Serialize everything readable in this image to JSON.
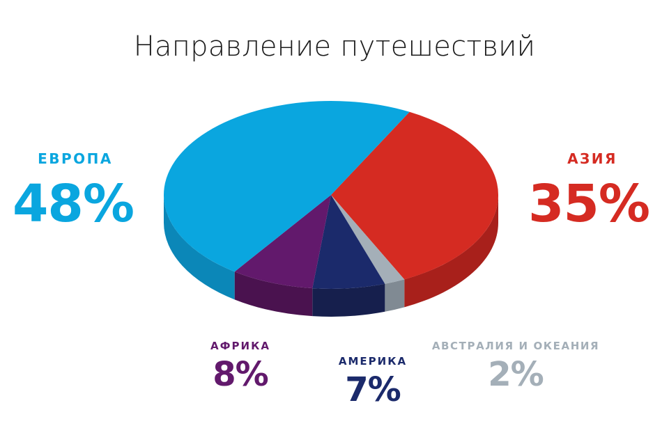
{
  "chart_data": {
    "type": "pie",
    "title": "Направление путешествий",
    "slices": [
      {
        "label": "ЕВРОПА",
        "value": 48,
        "value_label": "48%",
        "color": "#0aa6df",
        "side_color": "#0b87b8"
      },
      {
        "label": "АЗИЯ",
        "value": 35,
        "value_label": "35%",
        "color": "#d52b22",
        "side_color": "#a8201b"
      },
      {
        "label": "АВСТРАЛИЯ И ОКЕАНИЯ",
        "value": 2,
        "value_label": "2%",
        "color": "#a4afb8",
        "side_color": "#808a93"
      },
      {
        "label": "АМЕРИКА",
        "value": 7,
        "value_label": "7%",
        "color": "#1b2a6b",
        "side_color": "#161f4d"
      },
      {
        "label": "АФРИКА",
        "value": 8,
        "value_label": "8%",
        "color": "#62196c",
        "side_color": "#4a124f"
      }
    ],
    "style": "3d-pie"
  },
  "labels": {
    "europe": {
      "name": "ЕВРОПА",
      "value": "48%",
      "color": "#0aa6df"
    },
    "asia": {
      "name": "АЗИЯ",
      "value": "35%",
      "color": "#d52b22"
    },
    "africa": {
      "name": "АФРИКА",
      "value": "8%",
      "color": "#62196c"
    },
    "america": {
      "name": "АМЕРИКА",
      "value": "7%",
      "color": "#1b2a6b"
    },
    "australia": {
      "name": "АВСТРАЛИЯ И ОКЕАНИЯ",
      "value": "2%",
      "color": "#a4afb8"
    }
  }
}
